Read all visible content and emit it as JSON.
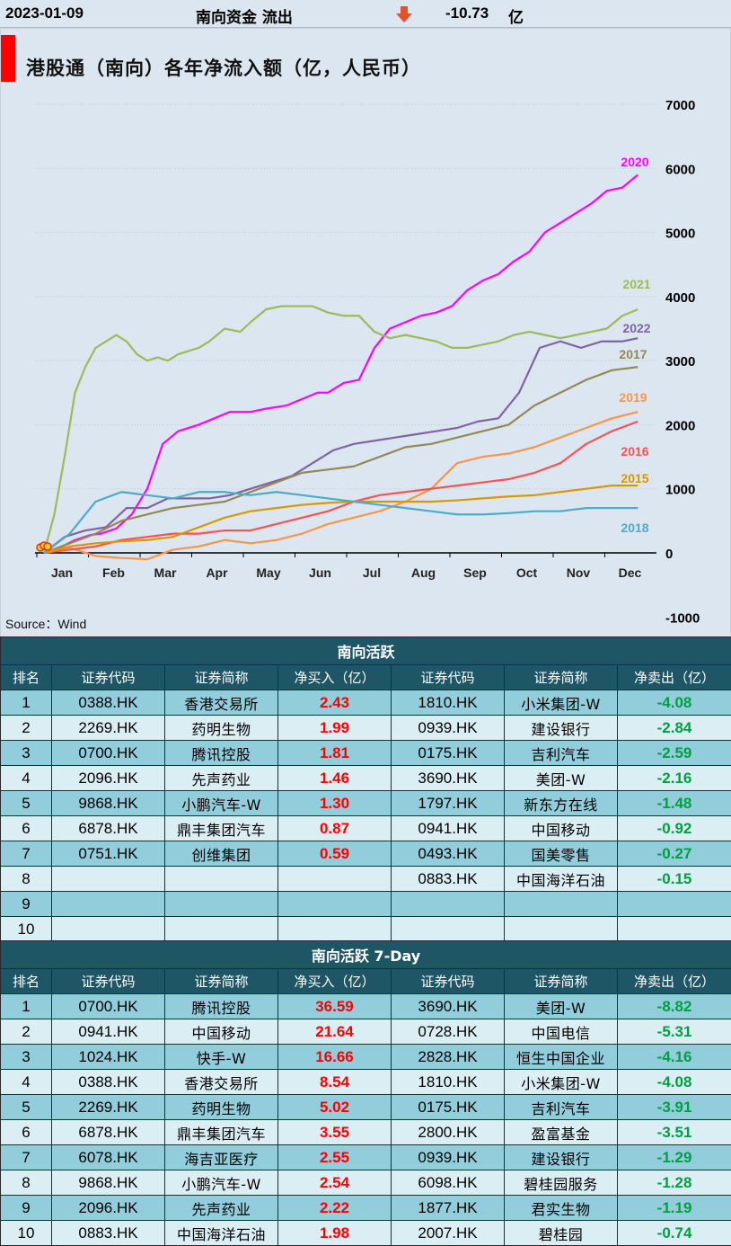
{
  "header": {
    "date": "2023-01-09",
    "label": "南向资金 流出",
    "value": "-10.73",
    "unit": "亿"
  },
  "chart_data": {
    "type": "line",
    "title": "港股通（南向）各年净流入额（亿，人民币）",
    "source": "Source：Wind",
    "months": [
      "Jan",
      "Feb",
      "Mar",
      "Apr",
      "May",
      "Jun",
      "Jul",
      "Aug",
      "Sep",
      "Oct",
      "Nov",
      "Dec"
    ],
    "ylim": [
      -1000,
      7000
    ],
    "yticks": [
      -1000,
      0,
      1000,
      2000,
      3000,
      4000,
      5000,
      6000,
      7000
    ],
    "grid": true,
    "series": [
      {
        "name": "2020",
        "color": "#ff00ff",
        "x": [
          0,
          0.3,
          0.6,
          0.9,
          1.1,
          1.4,
          1.7,
          2.0,
          2.3,
          2.6,
          3.0,
          3.3,
          3.6,
          4.0,
          4.3,
          4.7,
          5.0,
          5.3,
          5.5,
          5.8,
          6.1,
          6.4,
          6.7,
          7.0,
          7.3,
          7.6,
          7.9,
          8.2,
          8.5,
          8.8,
          9.1,
          9.4,
          9.7,
          10.0,
          10.3,
          10.6,
          10.9,
          11.2,
          11.5
        ],
        "y": [
          0,
          80,
          200,
          280,
          300,
          380,
          600,
          1000,
          1700,
          1900,
          2000,
          2100,
          2200,
          2200,
          2250,
          2300,
          2400,
          2500,
          2500,
          2650,
          2700,
          3200,
          3500,
          3600,
          3700,
          3750,
          3850,
          4100,
          4250,
          4350,
          4550,
          4700,
          5000,
          5150,
          5300,
          5450,
          5650,
          5700,
          5900
        ]
      },
      {
        "name": "2021",
        "color": "#9bbb59",
        "x": [
          0,
          0.2,
          0.4,
          0.6,
          0.8,
          1.0,
          1.2,
          1.4,
          1.6,
          1.8,
          2.0,
          2.2,
          2.4,
          2.6,
          2.8,
          3.0,
          3.2,
          3.5,
          3.8,
          4.0,
          4.3,
          4.6,
          4.9,
          5.2,
          5.5,
          5.8,
          6.1,
          6.4,
          6.7,
          7.0,
          7.3,
          7.6,
          7.9,
          8.2,
          8.5,
          8.8,
          9.1,
          9.4,
          9.7,
          10.0,
          10.3,
          10.6,
          10.9,
          11.2,
          11.5
        ],
        "y": [
          0,
          600,
          1500,
          2500,
          2900,
          3200,
          3300,
          3400,
          3300,
          3100,
          3000,
          3050,
          3000,
          3100,
          3150,
          3200,
          3300,
          3500,
          3450,
          3600,
          3800,
          3850,
          3850,
          3850,
          3750,
          3700,
          3700,
          3450,
          3350,
          3400,
          3350,
          3300,
          3200,
          3200,
          3250,
          3300,
          3400,
          3450,
          3400,
          3350,
          3400,
          3450,
          3500,
          3700,
          3800
        ]
      },
      {
        "name": "2022",
        "color": "#8064a2",
        "x": [
          0,
          0.4,
          0.8,
          1.2,
          1.6,
          2.0,
          2.4,
          2.8,
          3.2,
          3.6,
          4.0,
          4.4,
          4.8,
          5.2,
          5.6,
          6.0,
          6.4,
          6.8,
          7.2,
          7.6,
          8.0,
          8.4,
          8.8,
          9.2,
          9.6,
          10.0,
          10.4,
          10.8,
          11.2,
          11.5
        ],
        "y": [
          0,
          250,
          350,
          400,
          700,
          700,
          850,
          850,
          850,
          900,
          1000,
          1100,
          1200,
          1400,
          1600,
          1700,
          1750,
          1800,
          1850,
          1900,
          1950,
          2050,
          2100,
          2500,
          3200,
          3300,
          3200,
          3300,
          3300,
          3350
        ]
      },
      {
        "name": "2017",
        "color": "#938953",
        "x": [
          0,
          0.5,
          1.0,
          1.5,
          2.0,
          2.5,
          3.0,
          3.5,
          4.0,
          4.5,
          5.0,
          5.5,
          6.0,
          6.5,
          7.0,
          7.5,
          8.0,
          8.5,
          9.0,
          9.5,
          10.0,
          10.5,
          11.0,
          11.5
        ],
        "y": [
          0,
          150,
          300,
          500,
          600,
          700,
          750,
          800,
          950,
          1100,
          1250,
          1300,
          1350,
          1500,
          1650,
          1700,
          1800,
          1900,
          2000,
          2300,
          2500,
          2700,
          2850,
          2900
        ]
      },
      {
        "name": "2019",
        "color": "#f79646",
        "x": [
          0,
          0.5,
          1.0,
          1.5,
          2.0,
          2.5,
          3.0,
          3.5,
          4.0,
          4.5,
          5.0,
          5.5,
          6.0,
          6.5,
          7.0,
          7.5,
          8.0,
          8.5,
          9.0,
          9.5,
          10.0,
          10.5,
          11.0,
          11.5
        ],
        "y": [
          0,
          80,
          -50,
          -80,
          -100,
          50,
          100,
          200,
          150,
          200,
          300,
          450,
          550,
          650,
          800,
          1000,
          1400,
          1500,
          1550,
          1650,
          1800,
          1950,
          2100,
          2200
        ]
      },
      {
        "name": "2016",
        "color": "#ff5050",
        "x": [
          0,
          0.5,
          1.0,
          1.5,
          2.0,
          2.5,
          3.0,
          3.5,
          4.0,
          4.5,
          5.0,
          5.5,
          6.0,
          6.5,
          7.0,
          7.5,
          8.0,
          8.5,
          9.0,
          9.5,
          10.0,
          10.5,
          11.0,
          11.5
        ],
        "y": [
          0,
          50,
          100,
          200,
          250,
          300,
          300,
          350,
          350,
          450,
          550,
          650,
          800,
          900,
          950,
          1000,
          1050,
          1100,
          1150,
          1250,
          1400,
          1700,
          1900,
          2050
        ]
      },
      {
        "name": "2015",
        "color": "#d99800",
        "x": [
          0,
          0.5,
          1.0,
          1.5,
          2.0,
          2.5,
          3.0,
          3.5,
          4.0,
          4.5,
          5.0,
          5.5,
          6.0,
          6.5,
          7.0,
          7.5,
          8.0,
          8.5,
          9.0,
          9.5,
          10.0,
          10.5,
          11.0,
          11.5
        ],
        "y": [
          0,
          100,
          150,
          180,
          200,
          250,
          400,
          550,
          650,
          700,
          750,
          780,
          800,
          800,
          800,
          800,
          820,
          850,
          880,
          900,
          950,
          1000,
          1050,
          1050
        ]
      },
      {
        "name": "2018",
        "color": "#4bacc6",
        "x": [
          0,
          0.5,
          1.0,
          1.5,
          2.0,
          2.5,
          3.0,
          3.5,
          4.0,
          4.5,
          5.0,
          5.5,
          6.0,
          6.5,
          7.0,
          7.5,
          8.0,
          8.5,
          9.0,
          9.5,
          10.0,
          10.5,
          11.0,
          11.5
        ],
        "y": [
          0,
          300,
          800,
          950,
          900,
          850,
          950,
          950,
          900,
          950,
          900,
          850,
          800,
          750,
          700,
          650,
          600,
          600,
          620,
          650,
          650,
          700,
          700,
          700
        ]
      }
    ]
  },
  "daily": {
    "title": "南向活跃",
    "headers": [
      "排名",
      "证券代码",
      "证券简称",
      "净买入（亿）",
      "证券代码",
      "证券简称",
      "净卖出（亿）"
    ],
    "rows": [
      [
        "1",
        "0388.HK",
        "香港交易所",
        "2.43",
        "1810.HK",
        "小米集团-W",
        "-4.08"
      ],
      [
        "2",
        "2269.HK",
        "药明生物",
        "1.99",
        "0939.HK",
        "建设银行",
        "-2.84"
      ],
      [
        "3",
        "0700.HK",
        "腾讯控股",
        "1.81",
        "0175.HK",
        "吉利汽车",
        "-2.59"
      ],
      [
        "4",
        "2096.HK",
        "先声药业",
        "1.46",
        "3690.HK",
        "美团-W",
        "-2.16"
      ],
      [
        "5",
        "9868.HK",
        "小鹏汽车-W",
        "1.30",
        "1797.HK",
        "新东方在线",
        "-1.48"
      ],
      [
        "6",
        "6878.HK",
        "鼎丰集团汽车",
        "0.87",
        "0941.HK",
        "中国移动",
        "-0.92"
      ],
      [
        "7",
        "0751.HK",
        "创维集团",
        "0.59",
        "0493.HK",
        "国美零售",
        "-0.27"
      ],
      [
        "8",
        "",
        "",
        "",
        "0883.HK",
        "中国海洋石油",
        "-0.15"
      ],
      [
        "9",
        "",
        "",
        "",
        "",
        "",
        ""
      ],
      [
        "10",
        "",
        "",
        "",
        "",
        "",
        ""
      ]
    ]
  },
  "weekly": {
    "title": "南向活跃 7-Day",
    "headers": [
      "排名",
      "证券代码",
      "证券简称",
      "净买入（亿）",
      "证券代码",
      "证券简称",
      "净卖出（亿）"
    ],
    "rows": [
      [
        "1",
        "0700.HK",
        "腾讯控股",
        "36.59",
        "3690.HK",
        "美团-W",
        "-8.82"
      ],
      [
        "2",
        "0941.HK",
        "中国移动",
        "21.64",
        "0728.HK",
        "中国电信",
        "-5.31"
      ],
      [
        "3",
        "1024.HK",
        "快手-W",
        "16.66",
        "2828.HK",
        "恒生中国企业",
        "-4.16"
      ],
      [
        "4",
        "0388.HK",
        "香港交易所",
        "8.54",
        "1810.HK",
        "小米集团-W",
        "-4.08"
      ],
      [
        "5",
        "2269.HK",
        "药明生物",
        "5.02",
        "0175.HK",
        "吉利汽车",
        "-3.91"
      ],
      [
        "6",
        "6878.HK",
        "鼎丰集团汽车",
        "3.55",
        "2800.HK",
        "盈富基金",
        "-3.51"
      ],
      [
        "7",
        "6078.HK",
        "海吉亚医疗",
        "2.55",
        "0939.HK",
        "建设银行",
        "-1.29"
      ],
      [
        "8",
        "9868.HK",
        "小鹏汽车-W",
        "2.54",
        "6098.HK",
        "碧桂园服务",
        "-1.28"
      ],
      [
        "9",
        "2096.HK",
        "先声药业",
        "2.22",
        "1877.HK",
        "君实生物",
        "-1.19"
      ],
      [
        "10",
        "0883.HK",
        "中国海洋石油",
        "1.98",
        "2007.HK",
        "碧桂园",
        "-0.74"
      ]
    ]
  }
}
